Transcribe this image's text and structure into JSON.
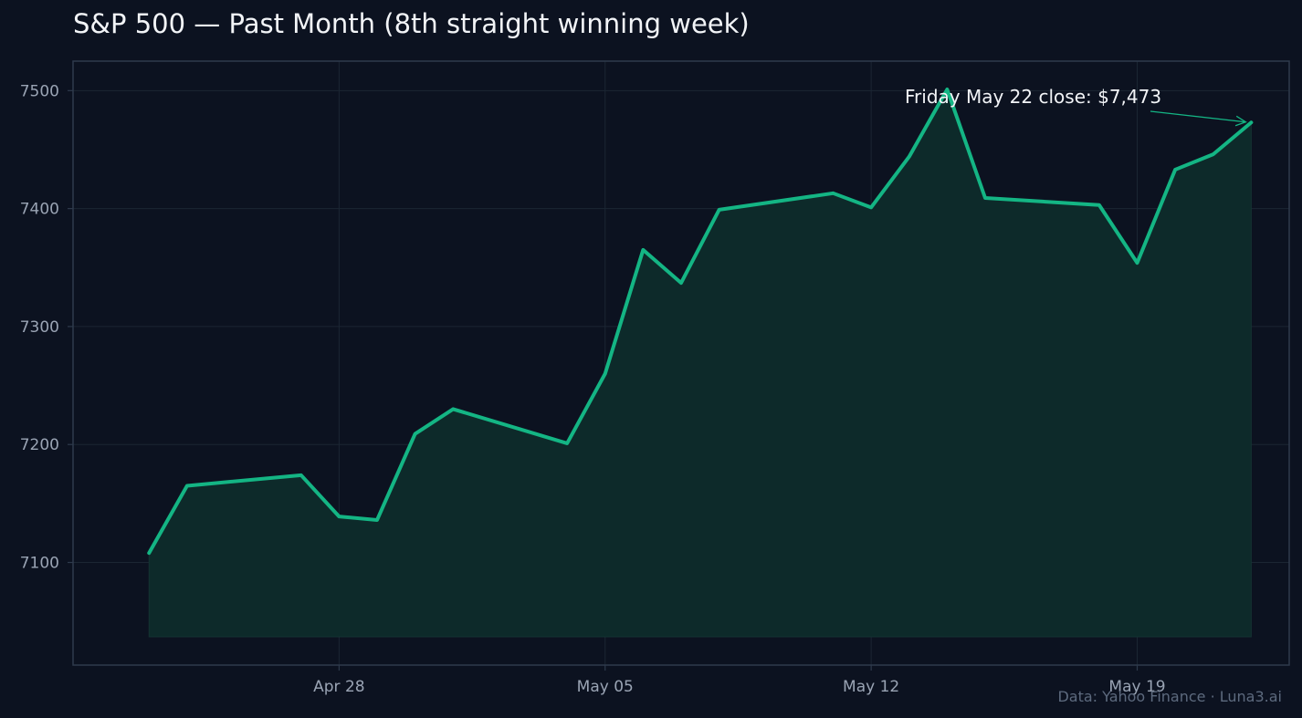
{
  "colors": {
    "background": "#0c1220",
    "plot_background": "#0c1220",
    "frame": "#2e3a4c",
    "grid": "#1b2633",
    "line": "#14b584",
    "area_fill": "#0d2a2a",
    "text": "#f2f4f7",
    "tick_text": "#9aa4b4",
    "credit_text": "#5d6a7e"
  },
  "credit": "Data: Yahoo Finance · Luna3.ai",
  "chart_data": {
    "type": "area",
    "title": "S&P 500 — Past Month (8th straight winning week)",
    "xlabel": "",
    "ylabel": "",
    "grid": true,
    "x": [
      "2025-04-23",
      "2025-04-24",
      "2025-04-27",
      "2025-04-28",
      "2025-04-29",
      "2025-04-30",
      "2025-05-01",
      "2025-05-04",
      "2025-05-05",
      "2025-05-06",
      "2025-05-07",
      "2025-05-08",
      "2025-05-11",
      "2025-05-12",
      "2025-05-13",
      "2025-05-14",
      "2025-05-15",
      "2025-05-18",
      "2025-05-19",
      "2025-05-20",
      "2025-05-21",
      "2025-05-22"
    ],
    "values": [
      7108,
      7165,
      7174,
      7139,
      7136,
      7209,
      7230,
      7201,
      7260,
      7365,
      7337,
      7399,
      7413,
      7401,
      7444,
      7501,
      7409,
      7403,
      7354,
      7433,
      7446,
      7473
    ],
    "xlim": [
      "2025-04-21",
      "2025-05-23"
    ],
    "ylim": [
      7013,
      7525
    ],
    "area_baseline": 7037,
    "x_ticks": [
      {
        "date": "2025-04-28",
        "label": "Apr 28"
      },
      {
        "date": "2025-05-05",
        "label": "May 05"
      },
      {
        "date": "2025-05-12",
        "label": "May 12"
      },
      {
        "date": "2025-05-19",
        "label": "May 19"
      }
    ],
    "y_ticks": [
      7100,
      7200,
      7300,
      7400,
      7500
    ],
    "y_tick_labels": [
      "7100",
      "7200",
      "7300",
      "7400",
      "7500"
    ],
    "annotation": {
      "text": "Friday May 22 close: $7,473",
      "target_date": "2025-05-22",
      "target_value": 7473
    }
  }
}
